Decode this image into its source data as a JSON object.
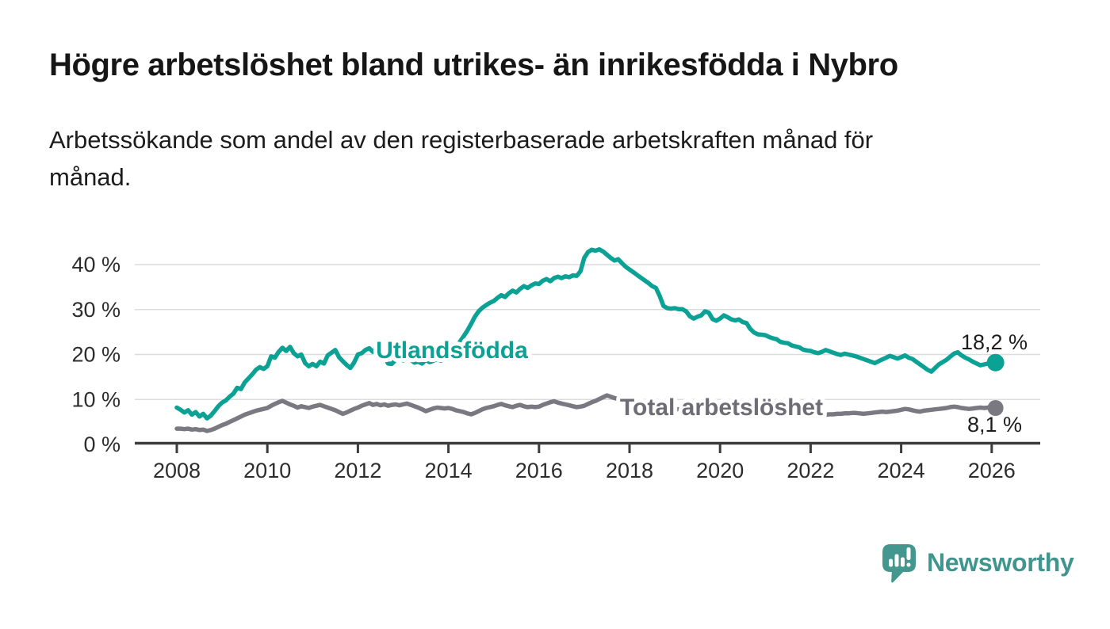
{
  "header": {
    "title": "Högre arbetslöshet bland utrikes- än inrikesfödda i Nybro",
    "subtitle_line1": "Arbetssökande som andel av den registerbaserade arbetskraften månad för",
    "subtitle_line2": "månad."
  },
  "chart_data": {
    "type": "line",
    "title": "Högre arbetslöshet bland utrikes- än inrikesfödda i Nybro",
    "subtitle": "Arbetssökande som andel av den registerbaserade arbetskraften månad för månad.",
    "x_unit": "month",
    "x_start_year": 2008,
    "points_per_year": 12,
    "ylim": [
      0,
      45
    ],
    "grid": true,
    "yticks": [
      {
        "value": 0,
        "label": "0 %"
      },
      {
        "value": 10,
        "label": "10 %"
      },
      {
        "value": 20,
        "label": "20 %"
      },
      {
        "value": 30,
        "label": "30 %"
      },
      {
        "value": 40,
        "label": "40 %"
      }
    ],
    "xticks": [
      {
        "value": 2008,
        "label": "2008"
      },
      {
        "value": 2010,
        "label": "2010"
      },
      {
        "value": 2012,
        "label": "2012"
      },
      {
        "value": 2014,
        "label": "2014"
      },
      {
        "value": 2016,
        "label": "2016"
      },
      {
        "value": 2018,
        "label": "2018"
      },
      {
        "value": 2020,
        "label": "2020"
      },
      {
        "value": 2022,
        "label": "2022"
      },
      {
        "value": 2024,
        "label": "2024"
      },
      {
        "value": 2026,
        "label": "2026"
      }
    ],
    "series": [
      {
        "name": "Utlandsfödda",
        "color": "#0ba295",
        "label_color": "#0ba295",
        "end_value": 18.2,
        "end_label": "18,2 %",
        "values": [
          8.2,
          7.7,
          7.1,
          7.6,
          6.6,
          7.2,
          6.2,
          6.8,
          5.8,
          6.4,
          7.4,
          8.5,
          9.3,
          9.8,
          10.6,
          11.3,
          12.6,
          12.3,
          13.8,
          14.7,
          15.6,
          16.6,
          17.2,
          16.8,
          17.4,
          19.6,
          19.3,
          20.6,
          21.5,
          20.8,
          21.7,
          20.3,
          19.6,
          20.0,
          18.1,
          17.4,
          17.9,
          17.4,
          18.4,
          18.0,
          19.8,
          20.4,
          21.0,
          19.4,
          18.5,
          17.7,
          17.0,
          18.2,
          20.0,
          20.3,
          21.0,
          21.4,
          20.6,
          21.5,
          20.8,
          19.7,
          18.0,
          17.9,
          18.8,
          19.3,
          18.7,
          19.2,
          18.8,
          18.2,
          18.4,
          18.0,
          18.8,
          18.3,
          18.6,
          19.0,
          18.6,
          19.2,
          19.8,
          20.6,
          21.6,
          22.8,
          24.0,
          25.3,
          26.8,
          28.4,
          29.6,
          30.4,
          31.0,
          31.5,
          31.9,
          32.6,
          33.2,
          32.8,
          33.6,
          34.2,
          33.8,
          34.6,
          35.2,
          34.8,
          35.4,
          35.8,
          35.7,
          36.4,
          36.8,
          36.3,
          37.0,
          37.3,
          37.0,
          37.4,
          37.2,
          37.6,
          37.5,
          38.5,
          41.5,
          42.8,
          43.3,
          43.1,
          43.4,
          42.9,
          42.2,
          41.5,
          40.9,
          41.2,
          40.3,
          39.5,
          38.9,
          38.3,
          37.7,
          37.1,
          36.5,
          35.9,
          35.2,
          34.8,
          33.0,
          30.8,
          30.3,
          30.2,
          30.3,
          30.1,
          30.1,
          29.6,
          28.5,
          28.0,
          28.4,
          28.7,
          29.6,
          29.3,
          27.9,
          27.5,
          28.0,
          28.7,
          28.3,
          27.8,
          27.6,
          27.8,
          27.2,
          27.0,
          25.7,
          24.9,
          24.5,
          24.4,
          24.3,
          23.9,
          23.6,
          23.4,
          22.8,
          22.6,
          22.5,
          22.0,
          21.8,
          21.6,
          21.1,
          20.9,
          20.8,
          20.5,
          20.3,
          20.6,
          21.0,
          20.7,
          20.4,
          20.1,
          19.9,
          20.2,
          20.0,
          19.8,
          19.6,
          19.3,
          19.0,
          18.7,
          18.4,
          18.1,
          18.5,
          18.9,
          19.3,
          19.7,
          19.4,
          19.1,
          19.4,
          19.8,
          19.3,
          19.0,
          18.4,
          17.8,
          17.2,
          16.6,
          16.2,
          17.0,
          17.8,
          18.3,
          18.8,
          19.5,
          20.2,
          20.5,
          19.8,
          19.3,
          18.9,
          18.4,
          18.0,
          17.6,
          17.8,
          18.0,
          17.9,
          18.2
        ]
      },
      {
        "name": "Total arbetslöshet",
        "color": "#7a7981",
        "label_color": "#6e6d75",
        "end_value": 8.1,
        "end_label": "8,1 %",
        "values": [
          3.5,
          3.5,
          3.4,
          3.5,
          3.3,
          3.4,
          3.2,
          3.3,
          3.0,
          3.2,
          3.5,
          3.9,
          4.3,
          4.6,
          5.0,
          5.4,
          5.8,
          6.2,
          6.6,
          6.9,
          7.2,
          7.5,
          7.7,
          7.9,
          8.1,
          8.6,
          9.0,
          9.4,
          9.7,
          9.3,
          8.9,
          8.6,
          8.2,
          8.5,
          8.3,
          8.1,
          8.4,
          8.6,
          8.8,
          8.5,
          8.2,
          7.9,
          7.6,
          7.2,
          6.8,
          7.1,
          7.5,
          7.9,
          8.2,
          8.6,
          8.9,
          9.2,
          8.8,
          9.0,
          8.7,
          8.9,
          8.6,
          8.8,
          8.9,
          8.7,
          8.9,
          9.1,
          8.8,
          8.5,
          8.2,
          7.8,
          7.4,
          7.7,
          8.0,
          8.2,
          8.1,
          8.0,
          8.1,
          7.9,
          7.6,
          7.4,
          7.2,
          6.9,
          6.7,
          7.0,
          7.4,
          7.8,
          8.1,
          8.3,
          8.5,
          8.8,
          9.0,
          8.7,
          8.5,
          8.3,
          8.6,
          8.8,
          8.5,
          8.3,
          8.4,
          8.3,
          8.4,
          8.8,
          9.1,
          9.4,
          9.6,
          9.3,
          9.1,
          8.9,
          8.7,
          8.5,
          8.3,
          8.4,
          8.6,
          9.0,
          9.4,
          9.7,
          10.1,
          10.5,
          10.9,
          10.6,
          10.3,
          10.1,
          9.9,
          9.7,
          9.5,
          9.3,
          9.1,
          9.0,
          8.8,
          8.7,
          8.5,
          8.4,
          8.3,
          8.2,
          8.1,
          8.0,
          7.9,
          7.8,
          7.7,
          7.6,
          7.5,
          7.4,
          7.5,
          7.6,
          7.5,
          7.4,
          7.3,
          7.4,
          7.6,
          7.8,
          8.0,
          8.2,
          8.4,
          8.5,
          8.4,
          8.3,
          8.2,
          8.1,
          8.0,
          7.9,
          7.8,
          7.7,
          7.6,
          7.5,
          7.4,
          7.3,
          7.2,
          7.1,
          7.0,
          6.9,
          6.8,
          6.8,
          6.8,
          6.7,
          6.7,
          6.6,
          6.6,
          6.7,
          6.7,
          6.8,
          6.8,
          6.9,
          6.9,
          7.0,
          7.0,
          6.9,
          6.8,
          6.9,
          7.0,
          7.1,
          7.2,
          7.3,
          7.2,
          7.3,
          7.4,
          7.5,
          7.7,
          7.9,
          7.8,
          7.6,
          7.4,
          7.3,
          7.5,
          7.6,
          7.7,
          7.8,
          7.9,
          8.0,
          8.1,
          8.3,
          8.4,
          8.3,
          8.1,
          8.0,
          7.9,
          8.0,
          8.1,
          8.2,
          8.1,
          8.2,
          8.1,
          8.1
        ]
      }
    ]
  },
  "branding": {
    "logo_text": "Newsworthy",
    "logo_color": "#40968e",
    "logo_icon": "bar-chart-speech-bubble"
  }
}
